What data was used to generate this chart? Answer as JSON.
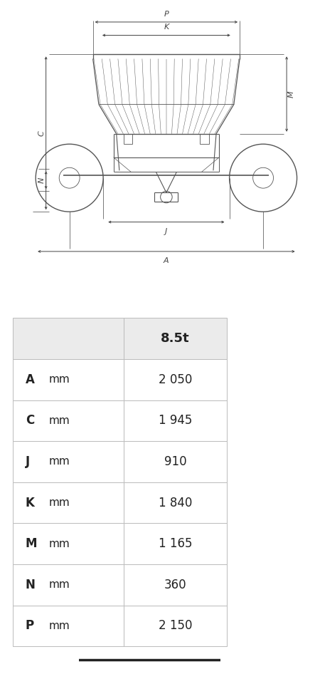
{
  "header_col": "8.5t",
  "rows": [
    {
      "label": "A",
      "unit": "mm",
      "value": "2 050"
    },
    {
      "label": "C",
      "unit": "mm",
      "value": "1 945"
    },
    {
      "label": "J",
      "unit": "mm",
      "value": "910"
    },
    {
      "label": "K",
      "unit": "mm",
      "value": "1 840"
    },
    {
      "label": "M",
      "unit": "mm",
      "value": "1 165"
    },
    {
      "label": "N",
      "unit": "mm",
      "value": "360"
    },
    {
      "label": "P",
      "unit": "mm",
      "value": "2 150"
    }
  ],
  "table_bg_header": "#ebebeb",
  "table_bg_white": "#ffffff",
  "table_border": "#bbbbbb",
  "diagram_color": "#555555",
  "background_color": "#ffffff",
  "bottom_line_color": "#222222",
  "arrow_color": "#444444",
  "dim_label_color": "#555555"
}
